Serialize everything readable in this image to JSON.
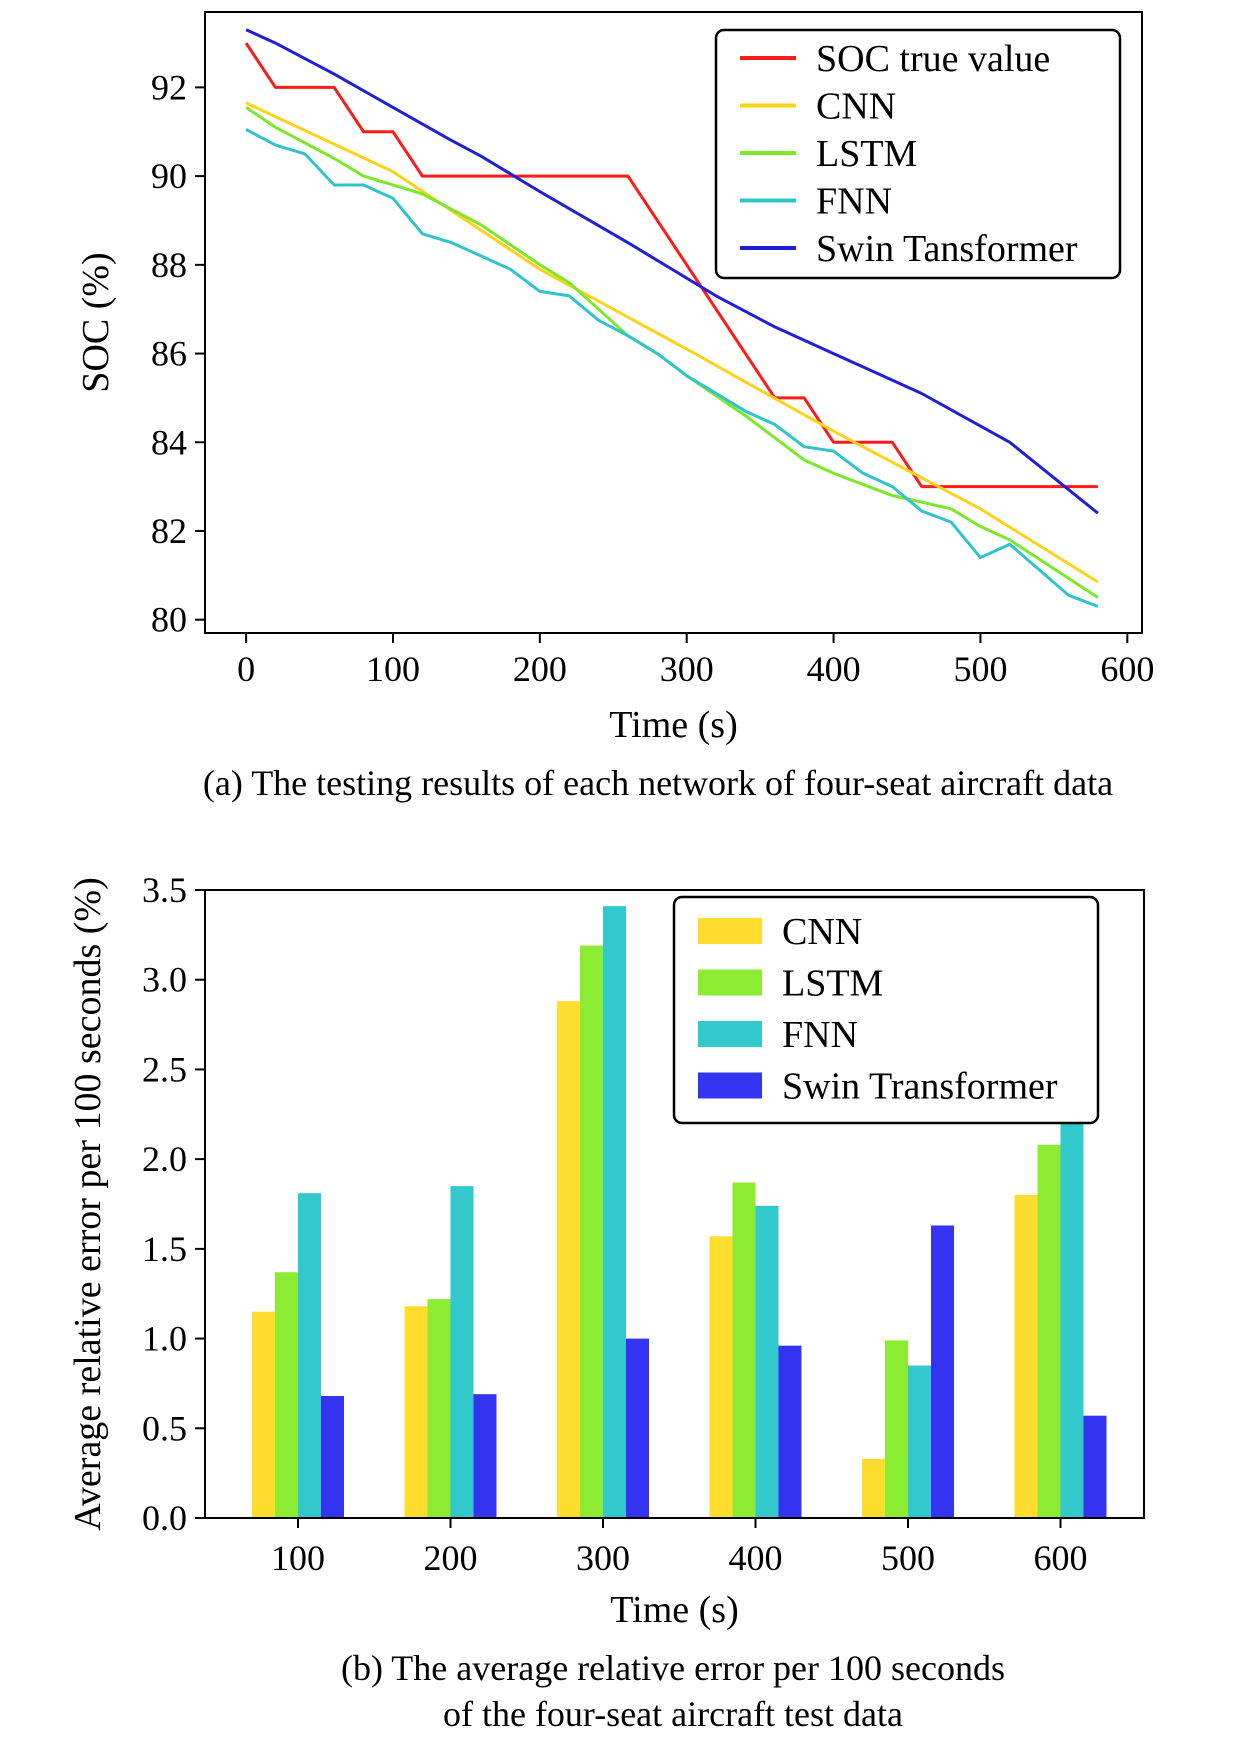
{
  "chart_data": [
    {
      "type": "line",
      "caption": "(a) The testing results of each network of four-seat aircraft data",
      "xlabel": "Time (s)",
      "ylabel": "SOC (%)",
      "xlim": [
        -28,
        610
      ],
      "ylim": [
        79.7,
        93.7
      ],
      "xticks": [
        0,
        100,
        200,
        300,
        400,
        500,
        600
      ],
      "xtick_labels": [
        "0",
        "100",
        "200",
        "300",
        "400",
        "500",
        "600"
      ],
      "yticks": [
        80,
        82,
        84,
        86,
        88,
        90,
        92
      ],
      "ytick_labels": [
        "80",
        "82",
        "84",
        "86",
        "88",
        "90",
        "92"
      ],
      "grid": false,
      "legend_position": "top-right",
      "series": [
        {
          "name": "SOC true value",
          "color": "#ff1a1a",
          "points": [
            [
              0,
              93
            ],
            [
              20,
              92
            ],
            [
              60,
              92
            ],
            [
              80,
              91
            ],
            [
              100,
              91
            ],
            [
              120,
              90
            ],
            [
              260,
              90
            ],
            [
              360,
              85
            ],
            [
              380,
              85
            ],
            [
              400,
              84
            ],
            [
              440,
              84
            ],
            [
              460,
              83
            ],
            [
              580,
              83
            ]
          ]
        },
        {
          "name": "CNN",
          "color": "#ffd21a",
          "points": [
            [
              0,
              91.65
            ],
            [
              100,
              90.1
            ],
            [
              200,
              87.9
            ],
            [
              300,
              86.1
            ],
            [
              400,
              84.25
            ],
            [
              500,
              82.5
            ],
            [
              580,
              80.85
            ]
          ]
        },
        {
          "name": "LSTM",
          "color": "#7de82a",
          "points": [
            [
              0,
              91.55
            ],
            [
              20,
              91.1
            ],
            [
              60,
              90.4
            ],
            [
              80,
              90
            ],
            [
              120,
              89.6
            ],
            [
              160,
              88.9
            ],
            [
              200,
              88
            ],
            [
              220,
              87.6
            ],
            [
              240,
              87
            ],
            [
              260,
              86.4
            ],
            [
              280,
              86
            ],
            [
              300,
              85.5
            ],
            [
              340,
              84.6
            ],
            [
              380,
              83.6
            ],
            [
              400,
              83.3
            ],
            [
              440,
              82.8
            ],
            [
              480,
              82.5
            ],
            [
              500,
              82.1
            ],
            [
              520,
              81.8
            ],
            [
              580,
              80.5
            ]
          ]
        },
        {
          "name": "FNN",
          "color": "#2fc4cc",
          "points": [
            [
              0,
              91.05
            ],
            [
              20,
              90.7
            ],
            [
              40,
              90.5
            ],
            [
              60,
              89.8
            ],
            [
              80,
              89.8
            ],
            [
              100,
              89.5
            ],
            [
              120,
              88.7
            ],
            [
              140,
              88.5
            ],
            [
              180,
              87.9
            ],
            [
              200,
              87.4
            ],
            [
              220,
              87.3
            ],
            [
              240,
              86.75
            ],
            [
              260,
              86.4
            ],
            [
              280,
              86
            ],
            [
              300,
              85.5
            ],
            [
              340,
              84.7
            ],
            [
              360,
              84.4
            ],
            [
              380,
              83.9
            ],
            [
              400,
              83.8
            ],
            [
              420,
              83.3
            ],
            [
              440,
              83
            ],
            [
              460,
              82.45
            ],
            [
              480,
              82.2
            ],
            [
              500,
              81.4
            ],
            [
              520,
              81.7
            ],
            [
              560,
              80.55
            ],
            [
              580,
              80.3
            ]
          ]
        },
        {
          "name": "Swin Tansformer",
          "color": "#1f1fd6",
          "points": [
            [
              0,
              93.3
            ],
            [
              20,
              93
            ],
            [
              60,
              92.3
            ],
            [
              100,
              91.55
            ],
            [
              140,
              90.8
            ],
            [
              160,
              90.45
            ],
            [
              200,
              89.65
            ],
            [
              260,
              88.5
            ],
            [
              320,
              87.3
            ],
            [
              360,
              86.6
            ],
            [
              400,
              86
            ],
            [
              460,
              85.1
            ],
            [
              520,
              84
            ],
            [
              580,
              82.4
            ]
          ]
        }
      ]
    },
    {
      "type": "bar",
      "caption_lines": [
        "(b) The average relative error per 100 seconds",
        "of the four-seat aircraft test data"
      ],
      "xlabel": "Time (s)",
      "ylabel": "Average relative error per 100 seconds (%)",
      "categories": [
        "100",
        "200",
        "300",
        "400",
        "500",
        "600"
      ],
      "ylim": [
        0,
        3.5
      ],
      "yticks": [
        0.0,
        0.5,
        1.0,
        1.5,
        2.0,
        2.5,
        3.0,
        3.5
      ],
      "ytick_labels": [
        "0.0",
        "0.5",
        "1.0",
        "1.5",
        "2.0",
        "2.5",
        "3.0",
        "3.5"
      ],
      "grid": false,
      "legend_position": "top-right",
      "series": [
        {
          "name": "CNN",
          "color": "#ffdd2e",
          "values": [
            1.15,
            1.18,
            2.88,
            1.57,
            0.33,
            1.8
          ]
        },
        {
          "name": "LSTM",
          "color": "#8cec32",
          "values": [
            1.37,
            1.22,
            3.19,
            1.87,
            0.99,
            2.08
          ]
        },
        {
          "name": "FNN",
          "color": "#33c9cc",
          "values": [
            1.81,
            1.85,
            3.41,
            1.74,
            0.85,
            2.25
          ]
        },
        {
          "name": "Swin Transformer",
          "color": "#3333f0",
          "values": [
            0.68,
            0.69,
            1.0,
            0.96,
            1.63,
            0.57
          ]
        }
      ]
    }
  ]
}
